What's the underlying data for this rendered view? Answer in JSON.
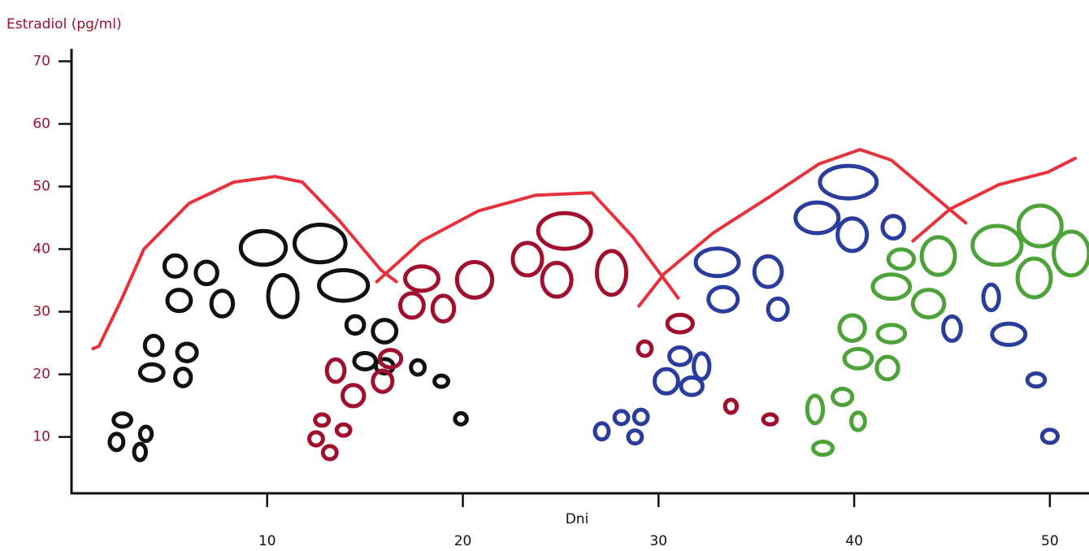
{
  "chart_data": {
    "type": "scatter",
    "y_label": "Estradiol (pg/ml)",
    "x_label": "Dni",
    "xlim": [
      0,
      52
    ],
    "ylim": [
      1,
      72
    ],
    "xticks": [
      10,
      20,
      30,
      40,
      50
    ],
    "yticks": [
      10,
      20,
      30,
      40,
      50,
      60,
      70
    ],
    "series": [
      {
        "type": "ellipse",
        "color": "#111111",
        "x": [
          2.6,
          2.3,
          3.8,
          3.5,
          4.2,
          4.1,
          5.9,
          5.7,
          5.3,
          6.9,
          5.5,
          7.7,
          9.8,
          12.7,
          10.8,
          13.9,
          14.5,
          16.0,
          15.0,
          16.0,
          17.7,
          18.9,
          19.9
        ],
        "y": [
          12.7,
          9.2,
          10.5,
          7.6,
          24.6,
          20.3,
          23.5,
          19.5,
          37.3,
          36.2,
          31.8,
          31.3,
          40.2,
          40.9,
          32.5,
          34.2,
          27.9,
          26.9,
          22.1,
          21.3,
          21.1,
          18.9,
          12.9
        ],
        "w": [
          0.9,
          0.7,
          0.6,
          0.6,
          0.9,
          1.2,
          1.0,
          0.8,
          1.1,
          1.1,
          1.2,
          1.1,
          2.3,
          2.6,
          1.5,
          2.5,
          0.9,
          1.2,
          1.1,
          0.9,
          0.7,
          0.7,
          0.6
        ],
        "h": [
          2.1,
          2.6,
          2.3,
          2.6,
          3.1,
          2.6,
          2.8,
          2.8,
          3.4,
          3.6,
          3.4,
          4.1,
          5.4,
          6.0,
          6.7,
          4.9,
          2.8,
          3.6,
          2.6,
          2.3,
          2.3,
          1.8,
          1.8
        ]
      },
      {
        "type": "ellipse",
        "color": "#a0102e",
        "x": [
          12.8,
          13.9,
          12.5,
          13.2,
          13.5,
          14.4,
          16.3,
          15.9,
          17.9,
          17.4,
          19.0,
          20.6,
          23.3,
          25.2,
          24.8,
          27.6,
          31.1,
          29.3,
          33.7,
          35.7
        ],
        "y": [
          12.7,
          11.1,
          9.7,
          7.5,
          20.6,
          16.6,
          22.5,
          18.9,
          35.3,
          31.0,
          30.5,
          35.1,
          38.4,
          42.9,
          35.1,
          36.2,
          28.1,
          24.1,
          14.9,
          12.8
        ],
        "w": [
          0.7,
          0.7,
          0.7,
          0.7,
          0.9,
          1.1,
          1.1,
          1.0,
          1.7,
          1.2,
          1.1,
          1.8,
          1.5,
          2.7,
          1.5,
          1.5,
          1.3,
          0.7,
          0.6,
          0.7
        ],
        "h": [
          1.8,
          1.8,
          2.1,
          2.1,
          3.6,
          3.4,
          2.8,
          3.4,
          3.9,
          3.9,
          4.1,
          5.7,
          5.2,
          5.7,
          5.4,
          7.0,
          2.8,
          2.3,
          2.1,
          1.6
        ]
      },
      {
        "type": "ellipse",
        "color": "#2b3d9c",
        "x": [
          27.1,
          28.1,
          29.1,
          28.8,
          31.1,
          32.2,
          30.4,
          31.7,
          33.0,
          33.3,
          35.6,
          36.1,
          39.7,
          38.1,
          39.9,
          42.0,
          47.0,
          45.0,
          47.9,
          49.3,
          50.0
        ],
        "y": [
          10.9,
          13.1,
          13.2,
          10.0,
          22.9,
          21.3,
          18.9,
          18.1,
          37.9,
          32.0,
          36.4,
          30.4,
          50.7,
          45.0,
          42.3,
          43.5,
          32.3,
          27.3,
          26.4,
          19.1,
          10.1
        ],
        "w": [
          0.7,
          0.7,
          0.7,
          0.7,
          1.1,
          0.8,
          1.2,
          1.1,
          2.2,
          1.5,
          1.4,
          1.0,
          2.9,
          2.2,
          1.5,
          1.1,
          0.8,
          0.9,
          1.7,
          0.9,
          0.8
        ],
        "h": [
          2.6,
          2.1,
          2.3,
          2.1,
          2.8,
          4.1,
          3.9,
          2.8,
          4.4,
          3.9,
          4.9,
          3.4,
          5.2,
          4.9,
          5.2,
          3.6,
          4.1,
          3.9,
          3.4,
          2.1,
          2.1
        ]
      },
      {
        "type": "ellipse",
        "color": "#4da23a",
        "x": [
          38.4,
          38.0,
          39.4,
          40.2,
          39.9,
          41.9,
          40.2,
          41.7,
          41.9,
          42.4,
          43.8,
          44.3,
          47.3,
          49.5,
          49.2,
          51.1
        ],
        "y": [
          8.2,
          14.4,
          16.4,
          12.5,
          27.4,
          26.5,
          22.5,
          21.0,
          34.0,
          38.4,
          31.3,
          38.9,
          40.6,
          43.7,
          35.4,
          39.3
        ],
        "w": [
          1.0,
          0.8,
          1.0,
          0.7,
          1.3,
          1.4,
          1.4,
          1.1,
          1.9,
          1.3,
          1.6,
          1.7,
          2.5,
          2.2,
          1.7,
          1.8
        ],
        "h": [
          2.1,
          4.4,
          2.6,
          2.8,
          4.1,
          2.8,
          3.1,
          3.6,
          3.9,
          3.1,
          4.4,
          6.0,
          6.2,
          6.5,
          6.2,
          7.0
        ]
      },
      {
        "type": "line",
        "color": "#e5323c",
        "x": [
          1.1,
          1.4,
          2.5,
          3.7,
          6.0,
          8.3,
          10.4,
          11.8,
          13.7,
          15.8,
          16.6,
          null,
          15.6,
          17.9,
          20.8,
          23.7,
          26.6,
          28.7,
          31.0,
          null,
          29.0,
          30.3,
          32.8,
          35.7,
          38.2,
          40.3,
          41.9,
          44.1,
          45.7,
          null,
          43.0,
          44.9,
          47.4,
          49.9,
          51.3
        ],
        "y": [
          24.1,
          24.5,
          31.6,
          40.0,
          47.3,
          50.7,
          51.6,
          50.7,
          44.5,
          36.7,
          34.8,
          null,
          34.8,
          41.3,
          46.1,
          48.6,
          49.0,
          41.9,
          32.2,
          null,
          30.9,
          36.1,
          42.6,
          48.4,
          53.6,
          55.9,
          54.2,
          48.4,
          44.2,
          null,
          41.3,
          46.4,
          50.3,
          52.3,
          54.5
        ]
      }
    ]
  }
}
